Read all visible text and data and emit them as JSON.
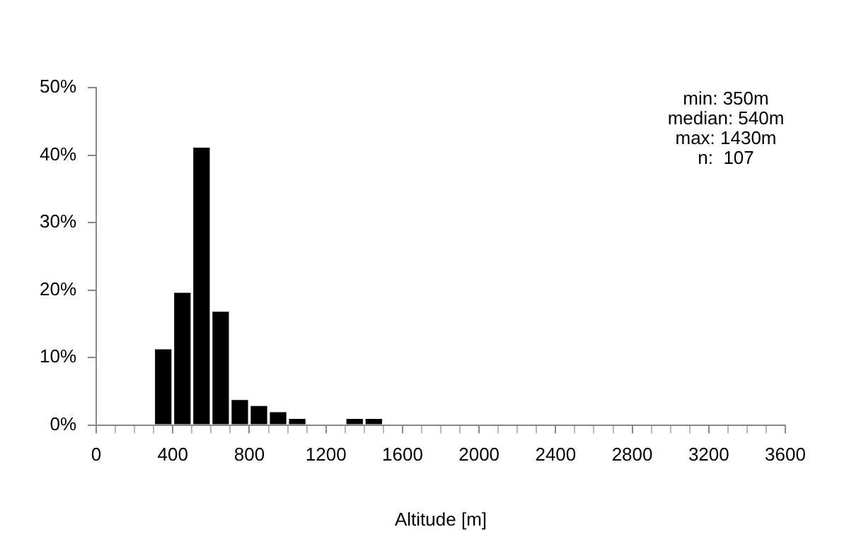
{
  "chart_data": {
    "type": "histogram",
    "xlabel": "Altitude [m]",
    "bins": [
      0,
      100,
      200,
      300,
      400,
      500,
      600,
      700,
      800,
      900,
      1000,
      1100,
      1200,
      1300,
      1400,
      1500,
      1600,
      1700,
      1800,
      1900,
      2000,
      2100,
      2200,
      2300,
      2400,
      2500,
      2600,
      2700,
      2800,
      2900,
      3000,
      3100,
      3200,
      3300,
      3400,
      3500,
      3600
    ],
    "values": [
      0,
      0,
      0,
      11.2,
      19.6,
      41.1,
      16.8,
      3.7,
      2.8,
      1.9,
      0.9,
      0,
      0,
      0.9,
      0.9,
      0,
      0,
      0,
      0,
      0,
      0,
      0,
      0,
      0,
      0,
      0,
      0,
      0,
      0,
      0,
      0,
      0,
      0,
      0,
      0,
      0
    ],
    "color": "#000000",
    "xlim": [
      0,
      3600
    ],
    "xticks": [
      0,
      {
        "value": 100,
        "label": null
      },
      {
        "value": 200,
        "label": null
      },
      {
        "value": 300,
        "label": null
      },
      400,
      {
        "value": 500,
        "label": null
      },
      {
        "value": 600,
        "label": null
      },
      {
        "value": 700,
        "label": null
      },
      800,
      {
        "value": 900,
        "label": null
      },
      {
        "value": 1000,
        "label": null
      },
      {
        "value": 1100,
        "label": null
      },
      1200,
      {
        "value": 1300,
        "label": null
      },
      {
        "value": 1400,
        "label": null
      },
      {
        "value": 1500,
        "label": null
      },
      1600,
      {
        "value": 1700,
        "label": null
      },
      {
        "value": 1800,
        "label": null
      },
      {
        "value": 1900,
        "label": null
      },
      2000,
      {
        "value": 2100,
        "label": null
      },
      {
        "value": 2200,
        "label": null
      },
      {
        "value": 2300,
        "label": null
      },
      2400,
      {
        "value": 2500,
        "label": null
      },
      {
        "value": 2600,
        "label": null
      },
      {
        "value": 2700,
        "label": null
      },
      2800,
      {
        "value": 2900,
        "label": null
      },
      {
        "value": 3000,
        "label": null
      },
      {
        "value": 3100,
        "label": null
      },
      3200,
      {
        "value": 3300,
        "label": null
      },
      {
        "value": 3400,
        "label": null
      },
      {
        "value": 3500,
        "label": null
      },
      3600
    ],
    "ylim": [
      0,
      50
    ],
    "yticks": [
      {
        "value": 0,
        "label": "0%"
      },
      {
        "value": 10,
        "label": "10%"
      },
      {
        "value": 20,
        "label": "20%"
      },
      {
        "value": 30,
        "label": "30%"
      },
      {
        "value": 40,
        "label": "40%"
      },
      {
        "value": 50,
        "label": "50%"
      }
    ],
    "grid": false,
    "legend": false,
    "annotations": [
      "min: 350m",
      "median: 540m",
      "max: 1430m",
      "n:  107"
    ]
  }
}
